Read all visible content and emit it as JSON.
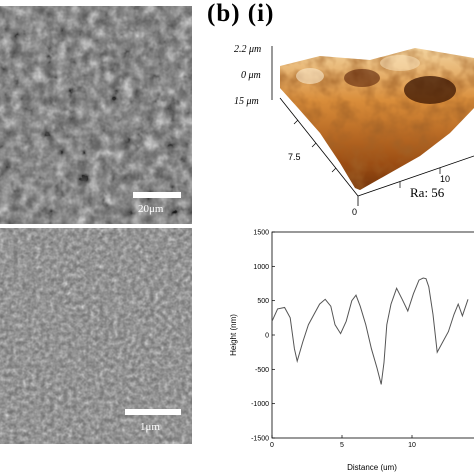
{
  "panel_a": {
    "top_scale_label": "20μm",
    "bottom_scale_label": "1μm"
  },
  "panel_b": {
    "heading": "(b) (i)",
    "afm": {
      "z_labels": [
        "2.2 μm",
        "0 μm",
        "15 μm"
      ],
      "axis_ticks": [
        "7.5",
        "0",
        "10"
      ],
      "ra_text": "Ra: 56"
    }
  },
  "chart_data": {
    "type": "line",
    "xlabel": "Distance (um)",
    "ylabel": "Height (nm)",
    "xlim": [
      0,
      15
    ],
    "ylim": [
      -1500,
      1500
    ],
    "yticks": [
      -1500,
      -1000,
      -500,
      0,
      500,
      1000,
      1500
    ],
    "xticks": [
      0,
      5,
      10
    ],
    "grid": false,
    "series": [
      {
        "x": [
          0,
          0.4,
          0.9,
          1.3,
          1.6,
          1.8,
          2.2,
          2.6,
          3.0,
          3.4,
          3.8,
          4.2,
          4.5,
          4.9,
          5.3,
          5.7,
          6.0,
          6.3,
          6.7,
          7.1,
          7.5,
          7.8,
          8.0,
          8.2,
          8.5,
          8.9,
          9.3,
          9.7,
          10.1,
          10.5,
          10.8,
          11.0,
          11.2,
          11.5,
          11.8,
          12.2,
          12.6,
          13.0,
          13.3,
          13.6,
          14.0
        ],
        "y": [
          200,
          380,
          400,
          250,
          -200,
          -380,
          -100,
          150,
          300,
          450,
          520,
          420,
          150,
          20,
          200,
          500,
          580,
          420,
          150,
          -200,
          -480,
          -720,
          -400,
          150,
          450,
          680,
          520,
          350,
          600,
          800,
          830,
          820,
          700,
          300,
          -250,
          -100,
          50,
          300,
          450,
          280,
          520
        ]
      }
    ]
  }
}
